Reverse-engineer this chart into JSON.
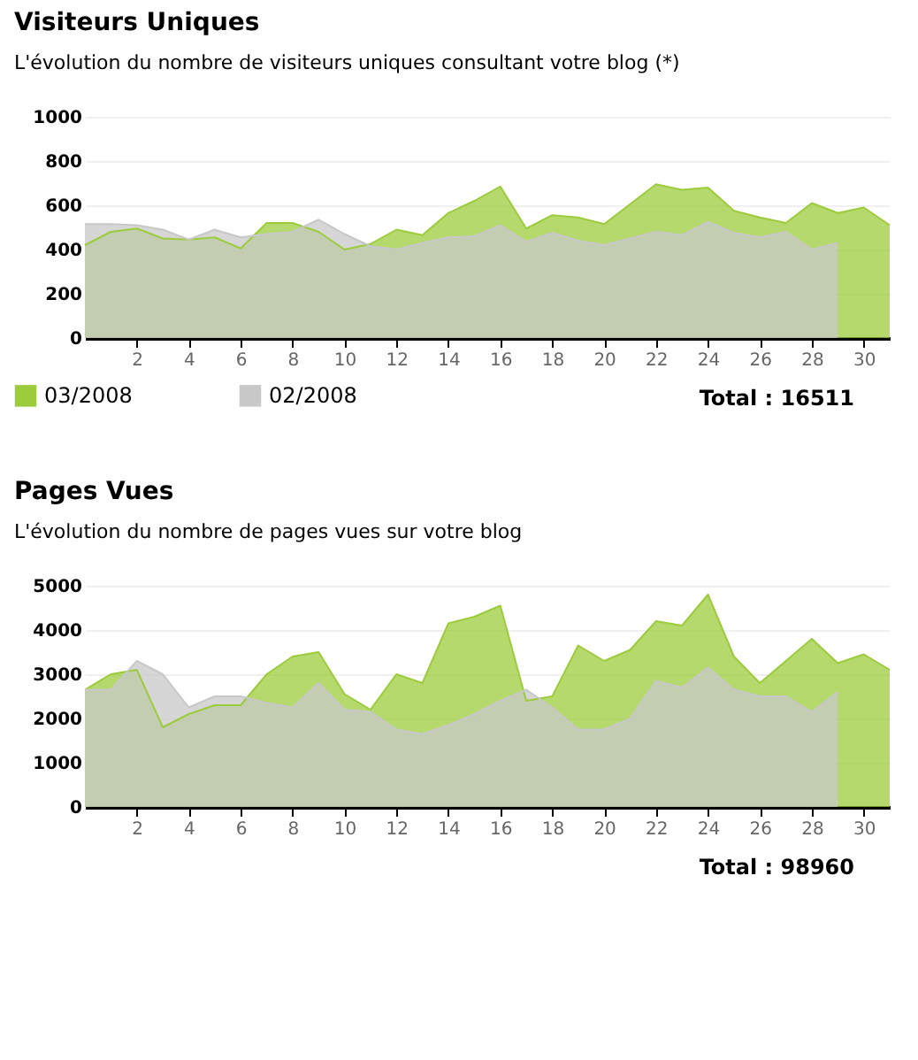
{
  "chart_data": [
    {
      "type": "area",
      "title": "Visiteurs Uniques",
      "subtitle": "L'évolution du nombre de visiteurs uniques consultant votre blog (*)",
      "x": [
        0,
        1,
        2,
        3,
        4,
        5,
        6,
        7,
        8,
        9,
        10,
        11,
        12,
        13,
        14,
        15,
        16,
        17,
        18,
        19,
        20,
        21,
        22,
        23,
        24,
        25,
        26,
        27,
        28,
        29,
        30,
        31
      ],
      "series": [
        {
          "name": "03/2008",
          "color": "#9ccc3c",
          "values": [
            420,
            480,
            495,
            450,
            445,
            455,
            405,
            520,
            520,
            480,
            400,
            425,
            490,
            465,
            565,
            620,
            685,
            495,
            555,
            545,
            515,
            605,
            695,
            670,
            680,
            575,
            545,
            520,
            610,
            565,
            590,
            510
          ]
        },
        {
          "name": "02/2008",
          "color": "#c8c8c8",
          "x": [
            0,
            1,
            2,
            3,
            4,
            5,
            6,
            7,
            8,
            9,
            10,
            11,
            12,
            13,
            14,
            15,
            16,
            17,
            18,
            19,
            20,
            21,
            22,
            23,
            24,
            25,
            26,
            27,
            28,
            29
          ],
          "values": [
            515,
            515,
            510,
            490,
            445,
            490,
            455,
            470,
            480,
            535,
            470,
            415,
            400,
            430,
            455,
            460,
            510,
            435,
            475,
            440,
            420,
            450,
            480,
            465,
            525,
            475,
            455,
            480,
            400,
            430
          ]
        }
      ],
      "xlim": [
        0,
        31
      ],
      "xticks": [
        2,
        4,
        6,
        8,
        10,
        12,
        14,
        16,
        18,
        20,
        22,
        24,
        26,
        28,
        30
      ],
      "ylim": [
        0,
        1000
      ],
      "yticks": [
        0,
        200,
        400,
        600,
        800,
        1000
      ],
      "grid": "y",
      "legend": "bottom left",
      "annotations": [
        "Total : 16511"
      ]
    },
    {
      "type": "area",
      "title": "Pages Vues",
      "subtitle": "L'évolution du nombre de pages vues sur votre blog",
      "x": [
        0,
        1,
        2,
        3,
        4,
        5,
        6,
        7,
        8,
        9,
        10,
        11,
        12,
        13,
        14,
        15,
        16,
        17,
        18,
        19,
        20,
        21,
        22,
        23,
        24,
        25,
        26,
        27,
        28,
        29,
        30,
        31
      ],
      "series": [
        {
          "name": "03/2008",
          "color": "#9ccc3c",
          "values": [
            2650,
            3000,
            3100,
            1800,
            2100,
            2300,
            2300,
            3000,
            3400,
            3500,
            2550,
            2200,
            3000,
            2800,
            4150,
            4300,
            4550,
            2400,
            2500,
            3650,
            3300,
            3550,
            4200,
            4100,
            4800,
            3400,
            2800,
            3300,
            3800,
            3250,
            3450,
            3100
          ]
        },
        {
          "name": "02/2008",
          "color": "#c8c8c8",
          "x": [
            0,
            1,
            2,
            3,
            4,
            5,
            6,
            7,
            8,
            9,
            10,
            11,
            12,
            13,
            14,
            15,
            16,
            17,
            18,
            19,
            20,
            21,
            22,
            23,
            24,
            25,
            26,
            27,
            28,
            29
          ],
          "values": [
            2650,
            2650,
            3300,
            3000,
            2250,
            2500,
            2500,
            2350,
            2250,
            2800,
            2200,
            2150,
            1750,
            1650,
            1850,
            2100,
            2400,
            2650,
            2250,
            1750,
            1750,
            2000,
            2850,
            2700,
            3150,
            2650,
            2500,
            2500,
            2150,
            2600
          ]
        }
      ],
      "xlim": [
        0,
        31
      ],
      "xticks": [
        2,
        4,
        6,
        8,
        10,
        12,
        14,
        16,
        18,
        20,
        22,
        24,
        26,
        28,
        30
      ],
      "ylim": [
        0,
        5000
      ],
      "yticks": [
        0,
        1000,
        2000,
        3000,
        4000,
        5000
      ],
      "grid": "y",
      "legend": "bottom left",
      "annotations": [
        "Total : 98960"
      ]
    }
  ]
}
